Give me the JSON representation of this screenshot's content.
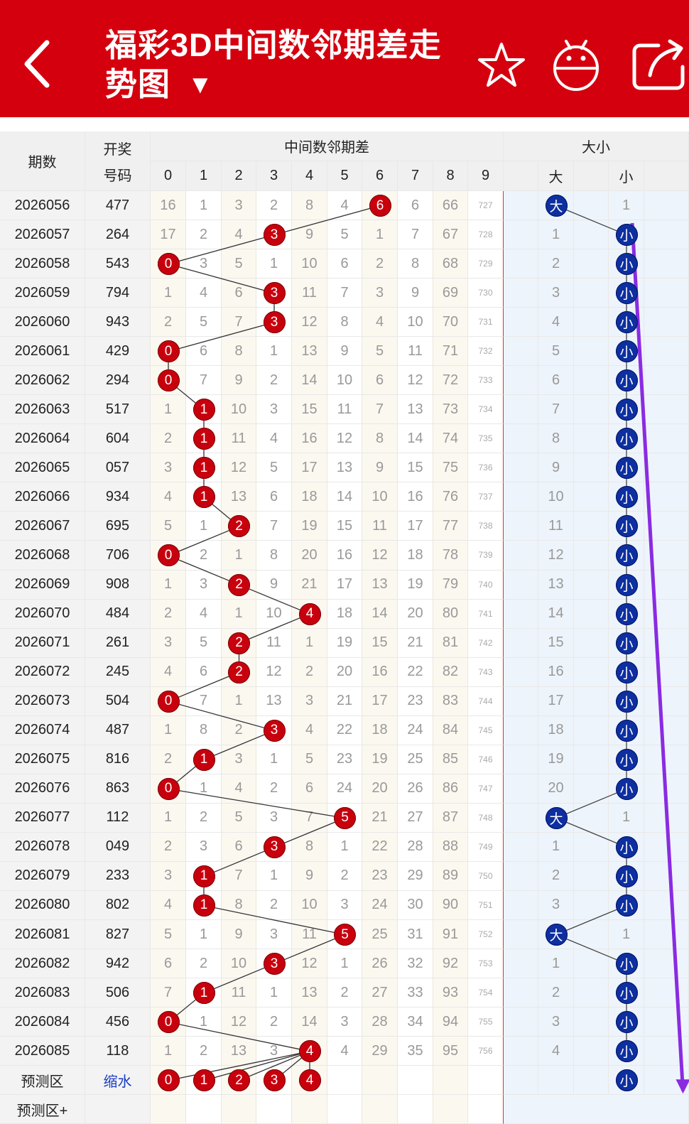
{
  "header": {
    "title_line1": "福彩3D中间数邻期差走",
    "title_line2": "势图",
    "dropdown_arrow": "▼",
    "icons": [
      "back-arrow-icon",
      "star-icon",
      "robot-icon",
      "share-icon"
    ],
    "bg_color": "#d4000e"
  },
  "table": {
    "col_period": "期数",
    "col_draw": "开奖号码",
    "col_draw_line1": "开奖",
    "col_draw_line2": "号码",
    "group_diff": "中间数邻期差",
    "group_size": "大小",
    "digits": [
      "0",
      "1",
      "2",
      "3",
      "4",
      "5",
      "6",
      "7",
      "8",
      "9"
    ],
    "size_labels": [
      "大",
      "小"
    ],
    "rows": [
      {
        "p": "2026056",
        "d": "477",
        "v": [
          16,
          1,
          3,
          2,
          8,
          4,
          6,
          6,
          66,
          727
        ],
        "hit": 6,
        "big": "大",
        "small": 1,
        "which": "big"
      },
      {
        "p": "2026057",
        "d": "264",
        "v": [
          17,
          2,
          4,
          3,
          9,
          5,
          1,
          7,
          67,
          728
        ],
        "hit": 3,
        "big": 1,
        "small": "小",
        "which": "small"
      },
      {
        "p": "2026058",
        "d": "543",
        "v": [
          0,
          3,
          5,
          1,
          10,
          6,
          2,
          8,
          68,
          729
        ],
        "hit": 0,
        "big": 2,
        "small": "小",
        "which": "small"
      },
      {
        "p": "2026059",
        "d": "794",
        "v": [
          1,
          4,
          6,
          3,
          11,
          7,
          3,
          9,
          69,
          730
        ],
        "hit": 3,
        "big": 3,
        "small": "小",
        "which": "small"
      },
      {
        "p": "2026060",
        "d": "943",
        "v": [
          2,
          5,
          7,
          3,
          12,
          8,
          4,
          10,
          70,
          731
        ],
        "hit": 3,
        "big": 4,
        "small": "小",
        "which": "small"
      },
      {
        "p": "2026061",
        "d": "429",
        "v": [
          0,
          6,
          8,
          1,
          13,
          9,
          5,
          11,
          71,
          732
        ],
        "hit": 0,
        "big": 5,
        "small": "小",
        "which": "small"
      },
      {
        "p": "2026062",
        "d": "294",
        "v": [
          0,
          7,
          9,
          2,
          14,
          10,
          6,
          12,
          72,
          733
        ],
        "hit": 0,
        "big": 6,
        "small": "小",
        "which": "small"
      },
      {
        "p": "2026063",
        "d": "517",
        "v": [
          1,
          1,
          10,
          3,
          15,
          11,
          7,
          13,
          73,
          734
        ],
        "hit": 1,
        "big": 7,
        "small": "小",
        "which": "small"
      },
      {
        "p": "2026064",
        "d": "604",
        "v": [
          2,
          1,
          11,
          4,
          16,
          12,
          8,
          14,
          74,
          735
        ],
        "hit": 1,
        "big": 8,
        "small": "小",
        "which": "small"
      },
      {
        "p": "2026065",
        "d": "057",
        "v": [
          3,
          1,
          12,
          5,
          17,
          13,
          9,
          15,
          75,
          736
        ],
        "hit": 1,
        "big": 9,
        "small": "小",
        "which": "small"
      },
      {
        "p": "2026066",
        "d": "934",
        "v": [
          4,
          1,
          13,
          6,
          18,
          14,
          10,
          16,
          76,
          737
        ],
        "hit": 1,
        "big": 10,
        "small": "小",
        "which": "small"
      },
      {
        "p": "2026067",
        "d": "695",
        "v": [
          5,
          1,
          2,
          7,
          19,
          15,
          11,
          17,
          77,
          738
        ],
        "hit": 2,
        "big": 11,
        "small": "小",
        "which": "small"
      },
      {
        "p": "2026068",
        "d": "706",
        "v": [
          0,
          2,
          1,
          8,
          20,
          16,
          12,
          18,
          78,
          739
        ],
        "hit": 0,
        "big": 12,
        "small": "小",
        "which": "small"
      },
      {
        "p": "2026069",
        "d": "908",
        "v": [
          1,
          3,
          2,
          9,
          21,
          17,
          13,
          19,
          79,
          740
        ],
        "hit": 2,
        "big": 13,
        "small": "小",
        "which": "small"
      },
      {
        "p": "2026070",
        "d": "484",
        "v": [
          2,
          4,
          1,
          10,
          4,
          18,
          14,
          20,
          80,
          741
        ],
        "hit": 4,
        "big": 14,
        "small": "小",
        "which": "small"
      },
      {
        "p": "2026071",
        "d": "261",
        "v": [
          3,
          5,
          2,
          11,
          1,
          19,
          15,
          21,
          81,
          742
        ],
        "hit": 2,
        "big": 15,
        "small": "小",
        "which": "small"
      },
      {
        "p": "2026072",
        "d": "245",
        "v": [
          4,
          6,
          2,
          12,
          2,
          20,
          16,
          22,
          82,
          743
        ],
        "hit": 2,
        "big": 16,
        "small": "小",
        "which": "small"
      },
      {
        "p": "2026073",
        "d": "504",
        "v": [
          0,
          7,
          1,
          13,
          3,
          21,
          17,
          23,
          83,
          744
        ],
        "hit": 0,
        "big": 17,
        "small": "小",
        "which": "small"
      },
      {
        "p": "2026074",
        "d": "487",
        "v": [
          1,
          8,
          2,
          3,
          4,
          22,
          18,
          24,
          84,
          745
        ],
        "hit": 3,
        "big": 18,
        "small": "小",
        "which": "small"
      },
      {
        "p": "2026075",
        "d": "816",
        "v": [
          2,
          1,
          3,
          1,
          5,
          23,
          19,
          25,
          85,
          746
        ],
        "hit": 1,
        "big": 19,
        "small": "小",
        "which": "small"
      },
      {
        "p": "2026076",
        "d": "863",
        "v": [
          0,
          1,
          4,
          2,
          6,
          24,
          20,
          26,
          86,
          747
        ],
        "hit": 0,
        "big": 20,
        "small": "小",
        "which": "small"
      },
      {
        "p": "2026077",
        "d": "112",
        "v": [
          1,
          2,
          5,
          3,
          7,
          5,
          21,
          27,
          87,
          748
        ],
        "hit": 5,
        "big": "大",
        "small": 1,
        "which": "big"
      },
      {
        "p": "2026078",
        "d": "049",
        "v": [
          2,
          3,
          6,
          3,
          8,
          1,
          22,
          28,
          88,
          749
        ],
        "hit": 3,
        "big": 1,
        "small": "小",
        "which": "small"
      },
      {
        "p": "2026079",
        "d": "233",
        "v": [
          3,
          1,
          7,
          1,
          9,
          2,
          23,
          29,
          89,
          750
        ],
        "hit": 1,
        "big": 2,
        "small": "小",
        "which": "small"
      },
      {
        "p": "2026080",
        "d": "802",
        "v": [
          4,
          1,
          8,
          2,
          10,
          3,
          24,
          30,
          90,
          751
        ],
        "hit": 1,
        "big": 3,
        "small": "小",
        "which": "small"
      },
      {
        "p": "2026081",
        "d": "827",
        "v": [
          5,
          1,
          9,
          3,
          11,
          5,
          25,
          31,
          91,
          752
        ],
        "hit": 5,
        "big": "大",
        "small": 1,
        "which": "big"
      },
      {
        "p": "2026082",
        "d": "942",
        "v": [
          6,
          2,
          10,
          3,
          12,
          1,
          26,
          32,
          92,
          753
        ],
        "hit": 3,
        "big": 1,
        "small": "小",
        "which": "small"
      },
      {
        "p": "2026083",
        "d": "506",
        "v": [
          7,
          1,
          11,
          1,
          13,
          2,
          27,
          33,
          93,
          754
        ],
        "hit": 1,
        "big": 2,
        "small": "小",
        "which": "small"
      },
      {
        "p": "2026084",
        "d": "456",
        "v": [
          0,
          1,
          12,
          2,
          14,
          3,
          28,
          34,
          94,
          755
        ],
        "hit": 0,
        "big": 3,
        "small": "小",
        "which": "small"
      },
      {
        "p": "2026085",
        "d": "118",
        "v": [
          1,
          2,
          13,
          3,
          4,
          4,
          29,
          35,
          95,
          756
        ],
        "hit": 4,
        "big": 4,
        "small": "小",
        "which": "small"
      }
    ],
    "predict_label": "预测区",
    "predict_link": "缩水",
    "predict_balls": [
      "0",
      "1",
      "2",
      "3",
      "4"
    ],
    "predict_size": "小",
    "predict_plus_label": "预测区+"
  },
  "colors": {
    "red_ball": "#c8000d",
    "blue_ball": "#0d2fa0",
    "trend_arrow": "#8a2be2"
  }
}
